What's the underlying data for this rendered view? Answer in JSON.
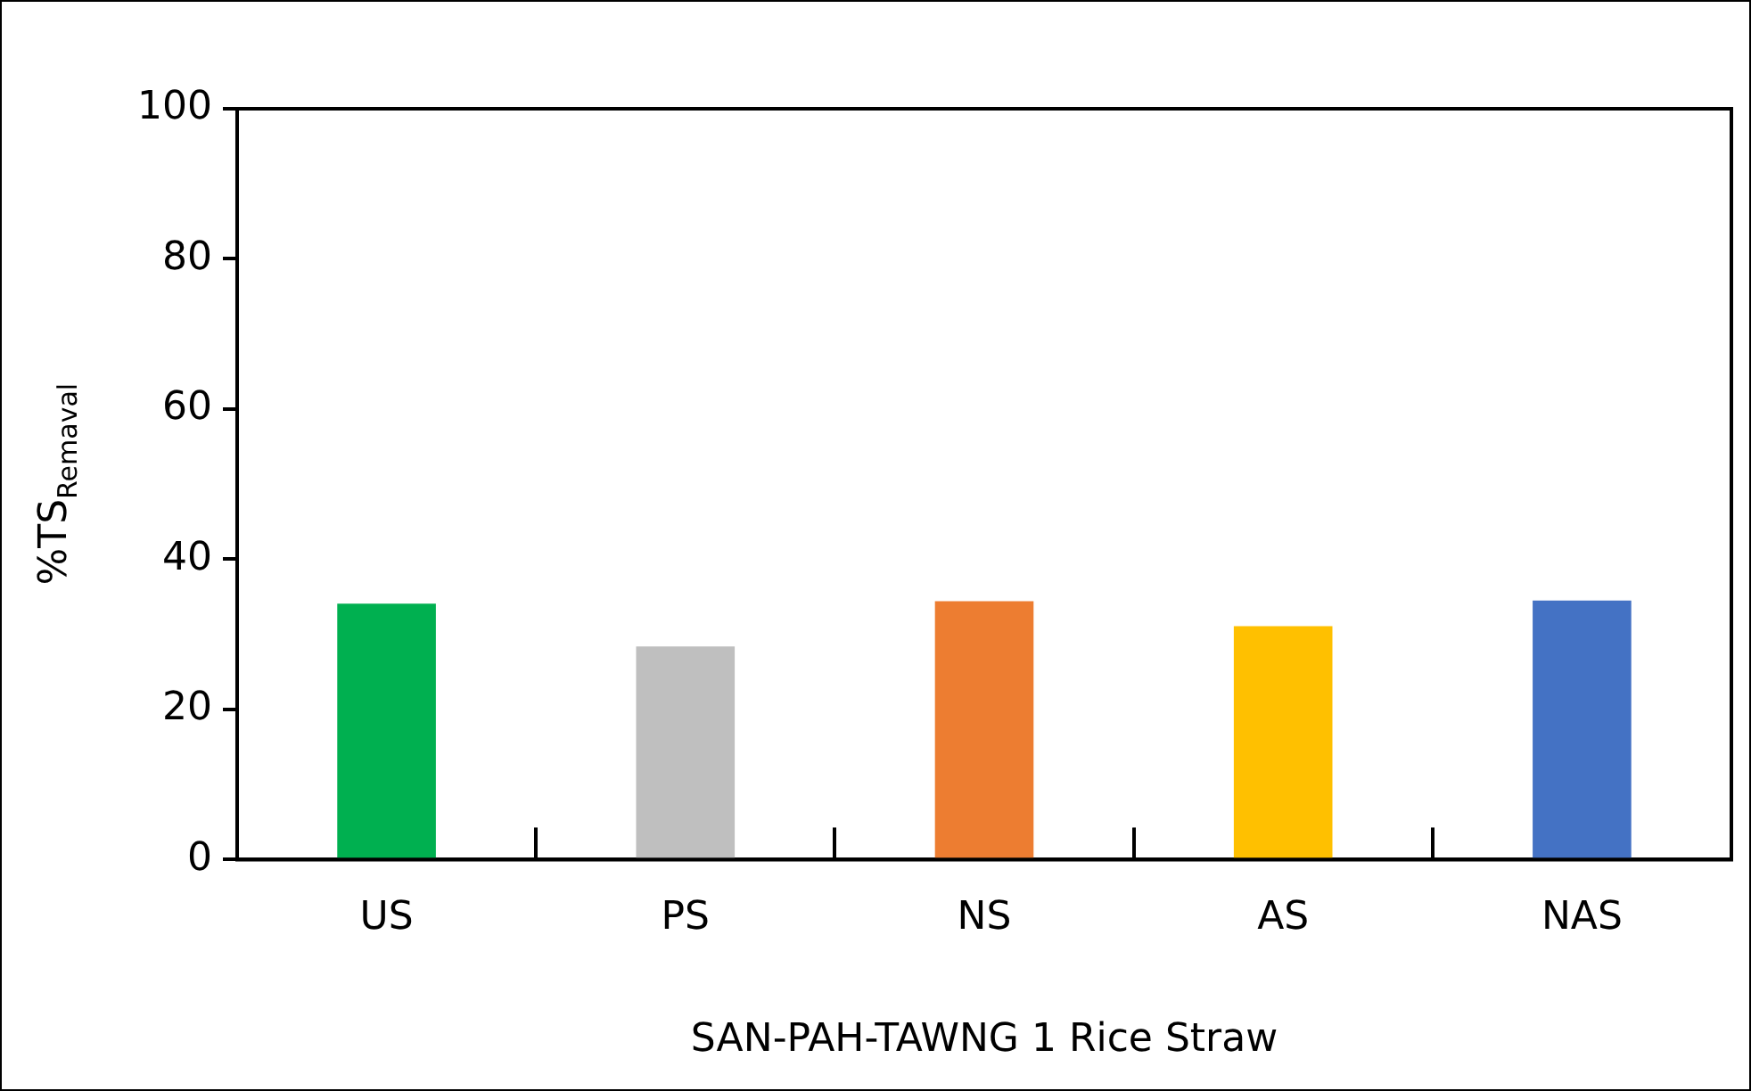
{
  "chart_data": {
    "type": "bar",
    "xlabel": "SAN-PAH-TAWNG 1 Rice Straw",
    "ylabel": "%TS$_{Remaval}$",
    "categories": [
      "US",
      "PS",
      "NS",
      "AS",
      "NAS"
    ],
    "values": [
      34.1,
      28.4,
      34.4,
      31.1,
      34.5
    ],
    "colors": [
      "#00b050",
      "#bfbfbf",
      "#ed7d31",
      "#ffc000",
      "#4472c4"
    ],
    "ylim": [
      0,
      100
    ],
    "yticks": [
      0,
      20,
      40,
      60,
      80,
      100
    ],
    "grid": false,
    "legend": false
  }
}
